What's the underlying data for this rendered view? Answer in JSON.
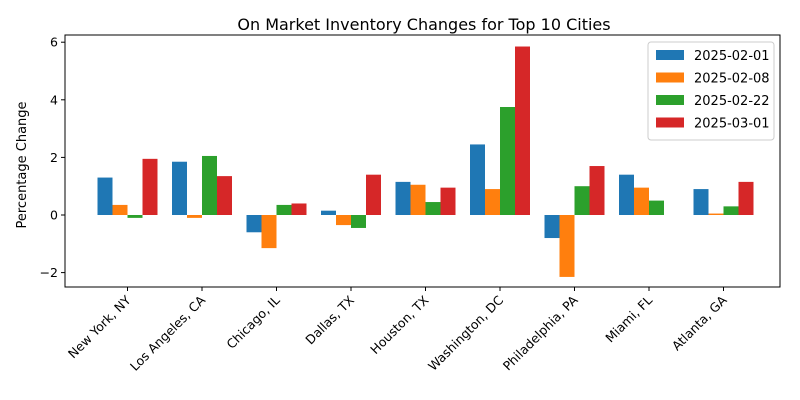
{
  "chart_data": {
    "type": "bar",
    "title": "On Market Inventory Changes for Top 10 Cities",
    "xlabel": "",
    "ylabel": "Percentage Change",
    "ylim": [
      -2.5,
      6.25
    ],
    "yticks": [
      -2,
      0,
      2,
      4,
      6
    ],
    "ytick_labels": [
      "−2",
      "0",
      "2",
      "4",
      "6"
    ],
    "grid": false,
    "legend_position": "top-right",
    "categories": [
      "New York, NY",
      "Los Angeles, CA",
      "Chicago, IL",
      "Dallas, TX",
      "Houston, TX",
      "Washington, DC",
      "Philadelphia, PA",
      "Miami, FL",
      "Atlanta, GA"
    ],
    "series": [
      {
        "name": "2025-02-01",
        "color": "#1f77b4",
        "values": [
          1.3,
          1.85,
          -0.6,
          0.15,
          1.15,
          2.45,
          -0.8,
          1.4,
          0.9
        ]
      },
      {
        "name": "2025-02-08",
        "color": "#ff7f0e",
        "values": [
          0.35,
          -0.1,
          -1.15,
          -0.35,
          1.05,
          0.9,
          -2.15,
          0.95,
          0.05
        ]
      },
      {
        "name": "2025-02-22",
        "color": "#2ca02c",
        "values": [
          -0.1,
          2.05,
          0.35,
          -0.45,
          0.45,
          3.75,
          1.0,
          0.5,
          0.3
        ]
      },
      {
        "name": "2025-03-01",
        "color": "#d62728",
        "values": [
          1.95,
          1.35,
          0.4,
          1.4,
          0.95,
          5.85,
          1.7,
          null,
          1.15
        ]
      }
    ]
  }
}
